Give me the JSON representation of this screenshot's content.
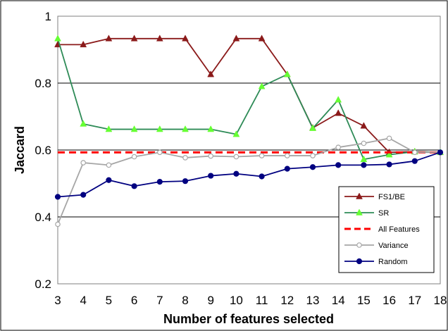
{
  "chart_data": {
    "type": "line",
    "title": "",
    "xlabel": "Number of features selected",
    "ylabel": "Jaccard",
    "x": [
      3,
      4,
      5,
      6,
      7,
      8,
      9,
      10,
      11,
      12,
      13,
      14,
      15,
      16,
      17,
      18
    ],
    "xticks": [
      "3",
      "4",
      "5",
      "6",
      "7",
      "8",
      "9",
      "10",
      "11",
      "12",
      "13",
      "14",
      "15",
      "16",
      "17",
      "18"
    ],
    "ylim": [
      0.2,
      1.0
    ],
    "yticks": [
      "0.2",
      "0.4",
      "0.6",
      "0.8",
      "1"
    ],
    "grid": "horizontal",
    "legend_position": "bottom-right",
    "series": [
      {
        "name": "FS1/BE",
        "color": "#8b1a1a",
        "marker": "triangle",
        "values": [
          0.915,
          0.915,
          0.933,
          0.933,
          0.933,
          0.933,
          0.826,
          0.933,
          0.933,
          0.826,
          0.666,
          0.71,
          0.672,
          0.593,
          0.595,
          0.593
        ]
      },
      {
        "name": "SR",
        "color": "#2e8b57",
        "marker_color": "#66ff33",
        "marker": "triangle",
        "values": [
          0.933,
          0.678,
          0.662,
          0.662,
          0.662,
          0.662,
          0.662,
          0.647,
          0.79,
          0.826,
          0.665,
          0.75,
          0.572,
          0.586,
          0.595,
          0.593
        ]
      },
      {
        "name": "All Features",
        "color": "#ff0000",
        "marker": "none",
        "dashed": true,
        "values": [
          0.593,
          0.593,
          0.593,
          0.593,
          0.593,
          0.593,
          0.593,
          0.593,
          0.593,
          0.593,
          0.593,
          0.593,
          0.593,
          0.593,
          0.593,
          0.593
        ]
      },
      {
        "name": "Variance",
        "color": "#a6a6a6",
        "marker": "open-circle",
        "values": [
          0.378,
          0.562,
          0.555,
          0.58,
          0.593,
          0.577,
          0.582,
          0.58,
          0.583,
          0.583,
          0.583,
          0.608,
          0.62,
          0.635,
          0.593,
          0.593
        ]
      },
      {
        "name": "Random",
        "color": "#000080",
        "marker": "filled-circle",
        "values": [
          0.46,
          0.466,
          0.51,
          0.492,
          0.505,
          0.507,
          0.523,
          0.529,
          0.521,
          0.544,
          0.549,
          0.555,
          0.555,
          0.557,
          0.567,
          0.593
        ]
      }
    ]
  }
}
